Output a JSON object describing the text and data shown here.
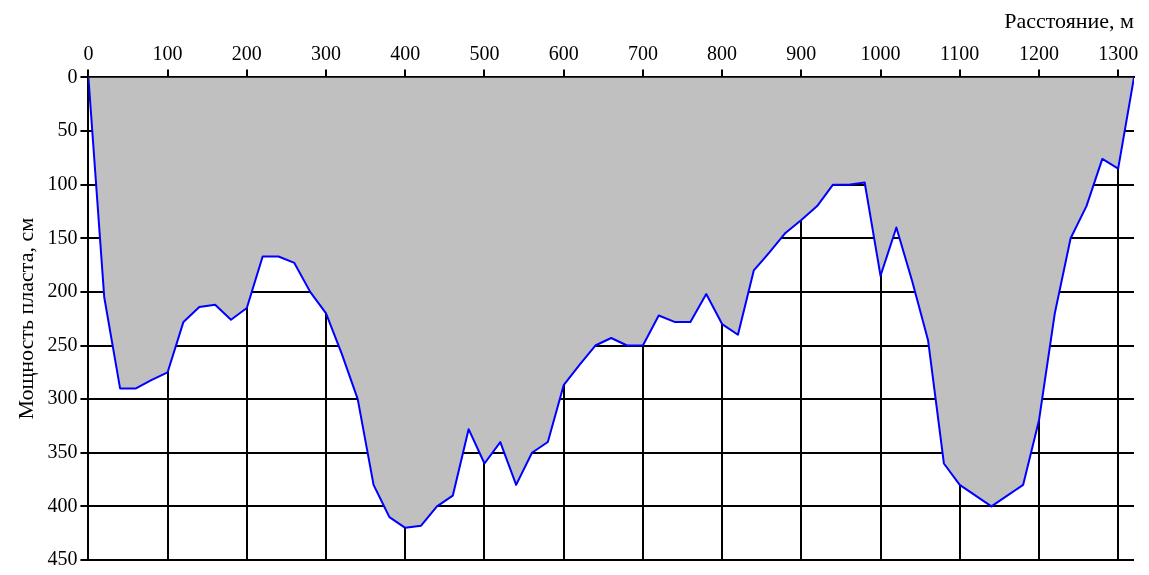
{
  "chart_data": {
    "type": "area",
    "xlabel": "Расстояние, м",
    "ylabel": "Мощность пласта, см",
    "x": [
      0,
      20,
      40,
      60,
      80,
      100,
      120,
      140,
      160,
      180,
      200,
      220,
      240,
      260,
      280,
      300,
      320,
      340,
      360,
      380,
      400,
      420,
      440,
      460,
      480,
      500,
      520,
      540,
      560,
      580,
      600,
      620,
      640,
      660,
      680,
      700,
      720,
      740,
      760,
      780,
      800,
      820,
      840,
      860,
      880,
      900,
      920,
      940,
      960,
      980,
      1000,
      1020,
      1040,
      1060,
      1080,
      1100,
      1120,
      1140,
      1160,
      1180,
      1200,
      1220,
      1240,
      1260,
      1280,
      1300,
      1320
    ],
    "series": [
      {
        "color": "#0000ff",
        "values": [
          0,
          205,
          290,
          290,
          282,
          275,
          228,
          214,
          212,
          226,
          215,
          167,
          167,
          173,
          200,
          220,
          258,
          300,
          380,
          410,
          420,
          418,
          400,
          390,
          328,
          360,
          340,
          380,
          350,
          340,
          287,
          268,
          250,
          243,
          250,
          250,
          222,
          228,
          228,
          202,
          230,
          240,
          180,
          163,
          145,
          133,
          120,
          100,
          100,
          98,
          185,
          140,
          190,
          245,
          360,
          380,
          390,
          400,
          390,
          380,
          320,
          220,
          150,
          120,
          76,
          85,
          0
        ]
      }
    ],
    "xlim": [
      0,
      1320
    ],
    "xticks": [
      0,
      100,
      200,
      300,
      400,
      500,
      600,
      700,
      800,
      900,
      1000,
      1100,
      1200,
      1300
    ],
    "ylim": [
      450,
      0
    ],
    "yticks": [
      0,
      50,
      100,
      150,
      200,
      250,
      300,
      350,
      400,
      450
    ],
    "grid": true,
    "legend": false,
    "marker": "none"
  }
}
